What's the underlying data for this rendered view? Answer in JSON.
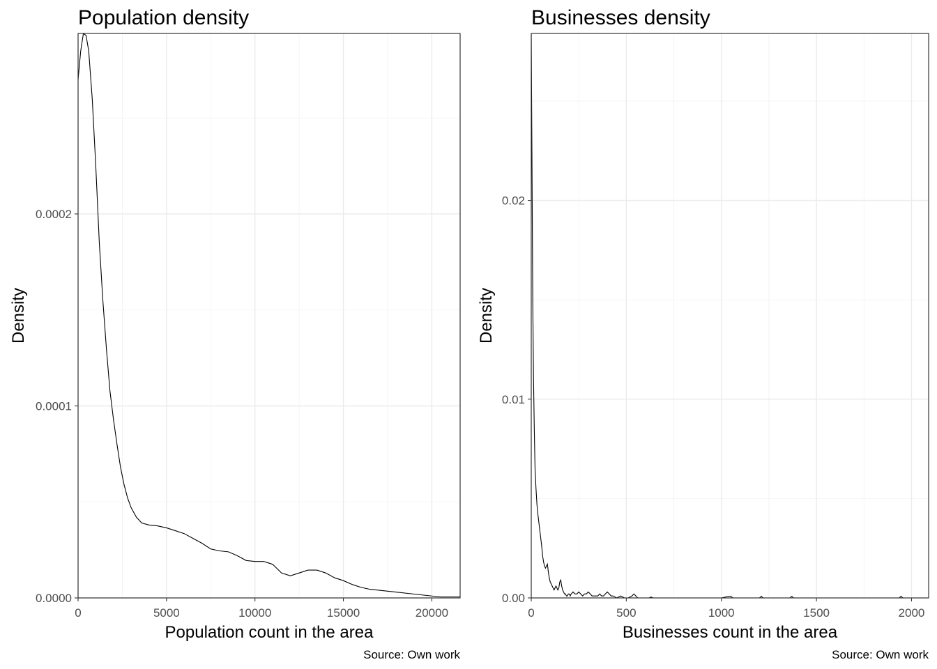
{
  "chart_data": [
    {
      "type": "line",
      "title": "Population density",
      "xlabel": "Population count in the area",
      "ylabel": "Density",
      "caption": "Source: Own work",
      "xlim": [
        0,
        21600
      ],
      "ylim": [
        0,
        0.000294
      ],
      "xticks": [
        0,
        5000,
        10000,
        15000,
        20000
      ],
      "xtick_labels": [
        "0",
        "5000",
        "10000",
        "15000",
        "20000"
      ],
      "yticks": [
        0,
        0.0001,
        0.0002
      ],
      "ytick_labels": [
        "0.0000",
        "0.0001",
        "0.0002"
      ],
      "grid": true,
      "series": [
        {
          "x": [
            0,
            150,
            300,
            450,
            600,
            800,
            1000,
            1200,
            1400,
            1600,
            1800,
            2000,
            2200,
            2400,
            2600,
            2800,
            3000,
            3300,
            3600,
            4000,
            4500,
            5000,
            5500,
            6000,
            6500,
            7000,
            7500,
            8000,
            8500,
            9000,
            9500,
            10000,
            10500,
            11000,
            11500,
            12000,
            12500,
            13000,
            13500,
            14000,
            14500,
            15000,
            15500,
            16000,
            16500,
            17000,
            18000,
            19000,
            20000,
            20500,
            21600
          ],
          "y": [
            0.00027,
            0.000285,
            0.000294,
            0.000293,
            0.000285,
            0.00026,
            0.000225,
            0.000185,
            0.000155,
            0.00013,
            0.000108,
            9.3e-05,
            8e-05,
            6.8e-05,
            5.9e-05,
            5.2e-05,
            4.7e-05,
            4.2e-05,
            3.9e-05,
            3.8e-05,
            3.75e-05,
            3.65e-05,
            3.5e-05,
            3.35e-05,
            3.1e-05,
            2.85e-05,
            2.55e-05,
            2.45e-05,
            2.4e-05,
            2.2e-05,
            1.95e-05,
            1.9e-05,
            1.9e-05,
            1.75e-05,
            1.3e-05,
            1.15e-05,
            1.3e-05,
            1.45e-05,
            1.45e-05,
            1.3e-05,
            1.05e-05,
            9e-06,
            7e-06,
            5.5e-06,
            4.5e-06,
            4e-06,
            3e-06,
            2e-06,
            1e-06,
            5e-07,
            5e-07
          ]
        }
      ]
    },
    {
      "type": "line",
      "title": "Businesses density",
      "xlabel": "Businesses count in the area",
      "ylabel": "Density",
      "caption": "Source: Own work",
      "xlim": [
        0,
        2090
      ],
      "ylim": [
        0,
        0.0284
      ],
      "xticks": [
        0,
        500,
        1000,
        1500,
        2000
      ],
      "xtick_labels": [
        "0",
        "500",
        "1000",
        "1500",
        "2000"
      ],
      "yticks": [
        0,
        0.01,
        0.02
      ],
      "ytick_labels": [
        "0.00",
        "0.01",
        "0.02"
      ],
      "grid": true,
      "series": [
        {
          "x": [
            0,
            2,
            5,
            8,
            12,
            16,
            20,
            25,
            30,
            35,
            40,
            45,
            50,
            55,
            60,
            65,
            70,
            75,
            80,
            85,
            90,
            95,
            100,
            105,
            110,
            115,
            120,
            125,
            130,
            135,
            140,
            145,
            150,
            155,
            160,
            165,
            170,
            175,
            180,
            185,
            190,
            195,
            200,
            205,
            210,
            220,
            230,
            240,
            250,
            260,
            270,
            280,
            290,
            300,
            310,
            320,
            330,
            340,
            350,
            360,
            370,
            380,
            390,
            400,
            410,
            420,
            430,
            440,
            450,
            470,
            490,
            510,
            530,
            540,
            550,
            560,
            580,
            600,
            620,
            630,
            640,
            660,
            700,
            800,
            900,
            1000,
            1040,
            1050,
            1060,
            1100,
            1200,
            1210,
            1220,
            1300,
            1360,
            1370,
            1380,
            1500,
            1700,
            1900,
            1935,
            1945,
            1955,
            2000,
            2090
          ],
          "y": [
            0.0284,
            0.025,
            0.02,
            0.015,
            0.011,
            0.0085,
            0.0065,
            0.0055,
            0.0047,
            0.0042,
            0.0038,
            0.0034,
            0.003,
            0.0026,
            0.0021,
            0.0018,
            0.0016,
            0.0015,
            0.0016,
            0.0017,
            0.0013,
            0.001,
            0.0008,
            0.0007,
            0.0006,
            0.0005,
            0.0004,
            0.0005,
            0.0006,
            0.0005,
            0.0004,
            0.0005,
            0.0008,
            0.0009,
            0.0006,
            0.0004,
            0.0003,
            0.0002,
            0.0002,
            0.0001,
            0.0001,
            0.0002,
            0.0002,
            0.0001,
            0.0002,
            0.0003,
            0.0002,
            0.0002,
            0.0003,
            0.0002,
            0.0001,
            0.0002,
            0.0002,
            0.0003,
            0.0002,
            0.0001,
            0.0001,
            0.0001,
            0.0001,
            0.0002,
            0.0001,
            0.0001,
            0.0002,
            0.0003,
            0.0002,
            0.0001,
            0.0001,
            5e-05,
            0.0,
            0.0001,
            0.0,
            0.0,
            0.0001,
            0.0002,
            0.0001,
            0.0,
            0.0,
            0.0,
            0.0,
            5e-05,
            0.0,
            0.0,
            0.0,
            0.0,
            0.0,
            0.0,
            8e-05,
            8e-05,
            0.0,
            0.0,
            0.0,
            8e-05,
            0.0,
            0.0,
            0.0,
            8e-05,
            0.0,
            0.0,
            0.0,
            0.0,
            0.0,
            8e-05,
            0.0,
            0.0,
            0.0
          ]
        }
      ]
    }
  ]
}
